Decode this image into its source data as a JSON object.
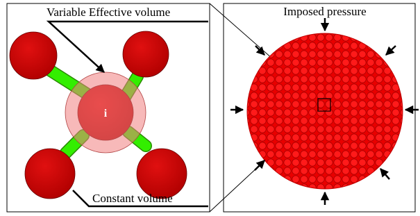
{
  "left_panel": {
    "effective_label": "Variable Effective volume",
    "constant_label": "Constant volume",
    "particle_label": "i"
  },
  "right_panel": {
    "title": "Imposed pressure"
  }
}
